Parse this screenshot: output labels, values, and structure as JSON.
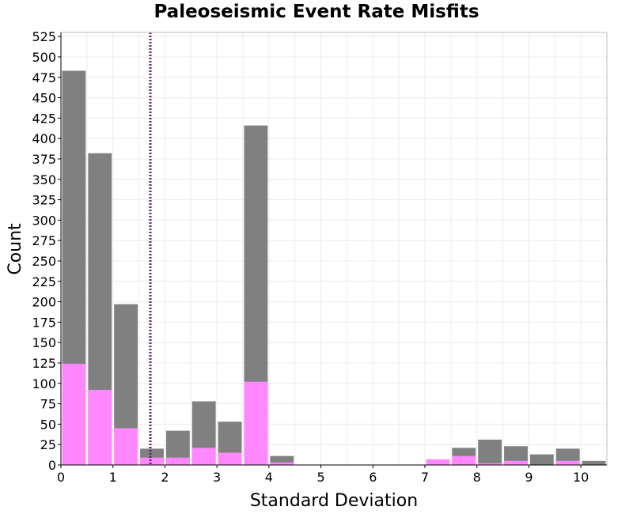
{
  "chart_data": {
    "type": "bar",
    "title": "Paleoseismic Event Rate Misfits",
    "xlabel": "Standard Deviation",
    "ylabel": "Count",
    "xlim": [
      0,
      10.5
    ],
    "ylim": [
      0,
      530
    ],
    "x_ticks": [
      "0",
      "1",
      "2",
      "3",
      "4",
      "5",
      "6",
      "7",
      "8",
      "9",
      "10"
    ],
    "y_ticks": [
      "0",
      "25",
      "50",
      "75",
      "100",
      "125",
      "150",
      "175",
      "200",
      "225",
      "250",
      "275",
      "300",
      "325",
      "350",
      "375",
      "400",
      "425",
      "450",
      "475",
      "500",
      "525"
    ],
    "bin_width": 0.5,
    "grid": true,
    "series": [
      {
        "color": "#808080",
        "x": [
          0.25,
          0.75,
          1.25,
          1.75,
          2.25,
          2.75,
          3.25,
          3.75,
          4.25,
          7.25,
          7.75,
          8.25,
          8.75,
          9.25,
          9.75,
          10.25
        ],
        "values": [
          483,
          382,
          197,
          20,
          42,
          78,
          53,
          416,
          11,
          0,
          21,
          31,
          23,
          13,
          20,
          5
        ]
      },
      {
        "color": "#ff88ff",
        "x": [
          0.25,
          0.75,
          1.25,
          1.75,
          2.25,
          2.75,
          3.25,
          3.75,
          4.25,
          7.25,
          7.75,
          8.25,
          8.75,
          9.25,
          9.75,
          10.25
        ],
        "values": [
          124,
          92,
          45,
          9,
          9,
          21,
          15,
          102,
          3,
          7,
          11,
          2,
          5,
          0,
          5,
          0
        ]
      }
    ],
    "reference_line": {
      "x": 1.72,
      "color": "#5a2a6a",
      "style": "dotted"
    }
  }
}
